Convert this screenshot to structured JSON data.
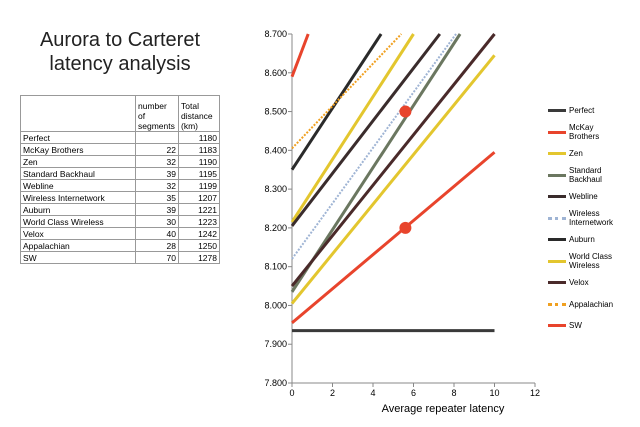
{
  "title": [
    "Aurora to Carteret",
    "latency analysis"
  ],
  "table": {
    "header": [
      "number of segments",
      "Total distance (km)"
    ],
    "rows": [
      [
        "Perfect",
        "",
        "1180"
      ],
      [
        "McKay Brothers",
        "22",
        "1183"
      ],
      [
        "Zen",
        "32",
        "1190"
      ],
      [
        "Standard Backhaul",
        "39",
        "1195"
      ],
      [
        "Webline",
        "32",
        "1199"
      ],
      [
        "Wireless Internetwork",
        "35",
        "1207"
      ],
      [
        "Auburn",
        "39",
        "1221"
      ],
      [
        "World Class Wireless",
        "30",
        "1223"
      ],
      [
        "Velox",
        "40",
        "1242"
      ],
      [
        "Appalachian",
        "28",
        "1250"
      ],
      [
        "SW",
        "70",
        "1278"
      ]
    ]
  },
  "chart_data": {
    "type": "line",
    "x_label": "Average repeater latency",
    "xlim": [
      0,
      12
    ],
    "xticks": [
      0,
      2,
      4,
      6,
      8,
      10,
      12
    ],
    "ylim": [
      7.8,
      8.7
    ],
    "yticks": [
      {
        "value": 7.8,
        "label": "7.800"
      },
      {
        "value": 7.9,
        "label": "7.900"
      },
      {
        "value": 8.0,
        "label": "8.000"
      },
      {
        "value": 8.1,
        "label": "8.100"
      },
      {
        "value": 8.2,
        "label": "8.200"
      },
      {
        "value": 8.3,
        "label": "8.300"
      },
      {
        "value": 8.4,
        "label": "8.400"
      },
      {
        "value": 8.5,
        "label": "8.500"
      },
      {
        "value": 8.6,
        "label": "8.600"
      },
      {
        "value": 8.7,
        "label": "8.700"
      }
    ],
    "legend": "right",
    "series": [
      {
        "name": "Perfect",
        "color": "#3a3a3a",
        "dash": "solid",
        "x": [
          0,
          10
        ],
        "values": [
          7.935,
          7.935
        ]
      },
      {
        "name": "McKay Brothers",
        "color": "#e8442c",
        "dash": "solid",
        "x": [
          0,
          0.8
        ],
        "values": [
          8.59,
          8.7
        ]
      },
      {
        "name": "Zen",
        "color": "#e3c62e",
        "dash": "solid",
        "x": [
          0,
          6.0
        ],
        "values": [
          8.215,
          8.7
        ]
      },
      {
        "name": "Standard Backhaul",
        "color": "#6b7760",
        "dash": "solid",
        "x": [
          0,
          8.3
        ],
        "values": [
          8.035,
          8.7
        ]
      },
      {
        "name": "Webline",
        "color": "#3a2c2c",
        "dash": "solid",
        "x": [
          0,
          7.3
        ],
        "values": [
          8.205,
          8.7
        ]
      },
      {
        "name": "Wireless Internetwork",
        "color": "#9fb4d4",
        "dash": "dotted",
        "x": [
          0,
          8.1
        ],
        "values": [
          8.12,
          8.7
        ]
      },
      {
        "name": "Auburn",
        "color": "#2a2a2a",
        "dash": "solid",
        "x": [
          0,
          4.4
        ],
        "values": [
          8.35,
          8.7
        ]
      },
      {
        "name": "World Class Wireless",
        "color": "#e3c62e",
        "dash": "solid",
        "x": [
          0,
          10
        ],
        "values": [
          8.005,
          8.645
        ]
      },
      {
        "name": "Velox",
        "color": "#4a2a2a",
        "dash": "solid",
        "x": [
          0,
          10
        ],
        "values": [
          8.05,
          8.7
        ]
      },
      {
        "name": "Appalachian",
        "color": "#f0a020",
        "dash": "dotted",
        "x": [
          0,
          5.4
        ],
        "values": [
          8.405,
          8.7
        ]
      },
      {
        "name": "SW",
        "color": "#e8442c",
        "dash": "solid",
        "x": [
          0,
          10
        ],
        "values": [
          7.955,
          8.395
        ]
      }
    ],
    "highlights": {
      "color": "#e8442c",
      "x": [
        5.6,
        5.6
      ],
      "values": [
        8.5,
        8.2
      ]
    }
  }
}
